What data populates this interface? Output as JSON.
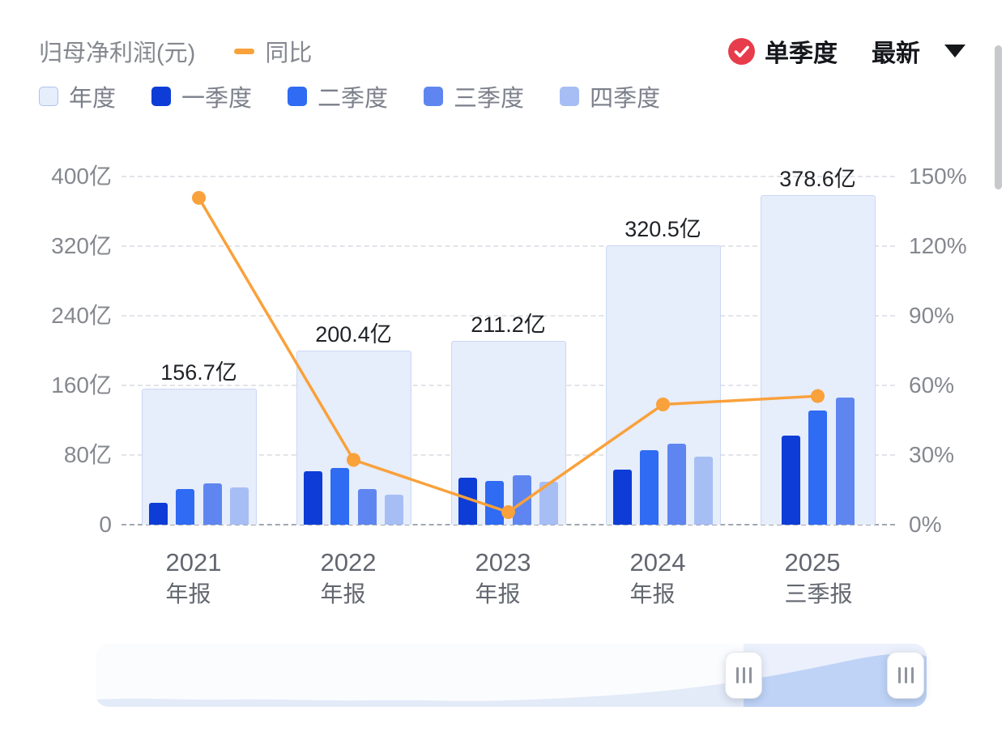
{
  "header": {
    "title": "归母净利润(元)",
    "yoy_label": "同比",
    "mode_label": "单季度",
    "latest_label": "最新"
  },
  "colors": {
    "accent_orange": "#F9A13B",
    "check_red": "#E73C4B",
    "annual_fill": "#E6EDFB",
    "text_gray": "#85888E",
    "text_dark": "#15171B"
  },
  "legend": [
    {
      "key": "annual",
      "label": "年度",
      "color": "#E6EDFB",
      "border": "#AFC3EE"
    },
    {
      "key": "q1",
      "label": "一季度",
      "color": "#0D3DD6"
    },
    {
      "key": "q2",
      "label": "二季度",
      "color": "#2F6BF3"
    },
    {
      "key": "q3",
      "label": "三季度",
      "color": "#5F86F0"
    },
    {
      "key": "q4",
      "label": "四季度",
      "color": "#A7BEF5"
    }
  ],
  "chart_data": {
    "type": "bar",
    "title": "归母净利润(元)",
    "legend_line": "同比",
    "left_axis": {
      "min": 0,
      "max": 400,
      "unit": "亿",
      "ticks": [
        "0",
        "80亿",
        "160亿",
        "240亿",
        "320亿",
        "400亿"
      ]
    },
    "right_axis": {
      "min": 0,
      "max": 150,
      "unit": "%",
      "ticks": [
        "0%",
        "30%",
        "60%",
        "90%",
        "120%",
        "150%"
      ]
    },
    "grid": "dashed-horizontal",
    "legend_position": "top-left",
    "quarter_colors": [
      "#0D3DD6",
      "#2F6BF3",
      "#5F86F0",
      "#A7BEF5"
    ],
    "annual_fill": "#E6EDFB",
    "line_color": "#F9A13B",
    "groups": [
      {
        "year": "2021",
        "period": "年报",
        "annual": 156.7,
        "annual_label": "156.7亿",
        "quarters": [
          25,
          41,
          47,
          43
        ],
        "yoy_pct": 140.8
      },
      {
        "year": "2022",
        "period": "年报",
        "annual": 200.4,
        "annual_label": "200.4亿",
        "quarters": [
          61,
          65,
          41,
          34
        ],
        "yoy_pct": 27.9
      },
      {
        "year": "2023",
        "period": "年报",
        "annual": 211.2,
        "annual_label": "211.2亿",
        "quarters": [
          54,
          50,
          57,
          49
        ],
        "yoy_pct": 5.4
      },
      {
        "year": "2024",
        "period": "年报",
        "annual": 320.5,
        "annual_label": "320.5亿",
        "quarters": [
          63,
          86,
          93,
          78
        ],
        "yoy_pct": 51.8
      },
      {
        "year": "2025",
        "period": "三季报",
        "annual": 378.6,
        "annual_label": "378.6亿",
        "quarters": [
          102,
          131,
          146
        ],
        "yoy_pct": 55.4
      }
    ]
  }
}
